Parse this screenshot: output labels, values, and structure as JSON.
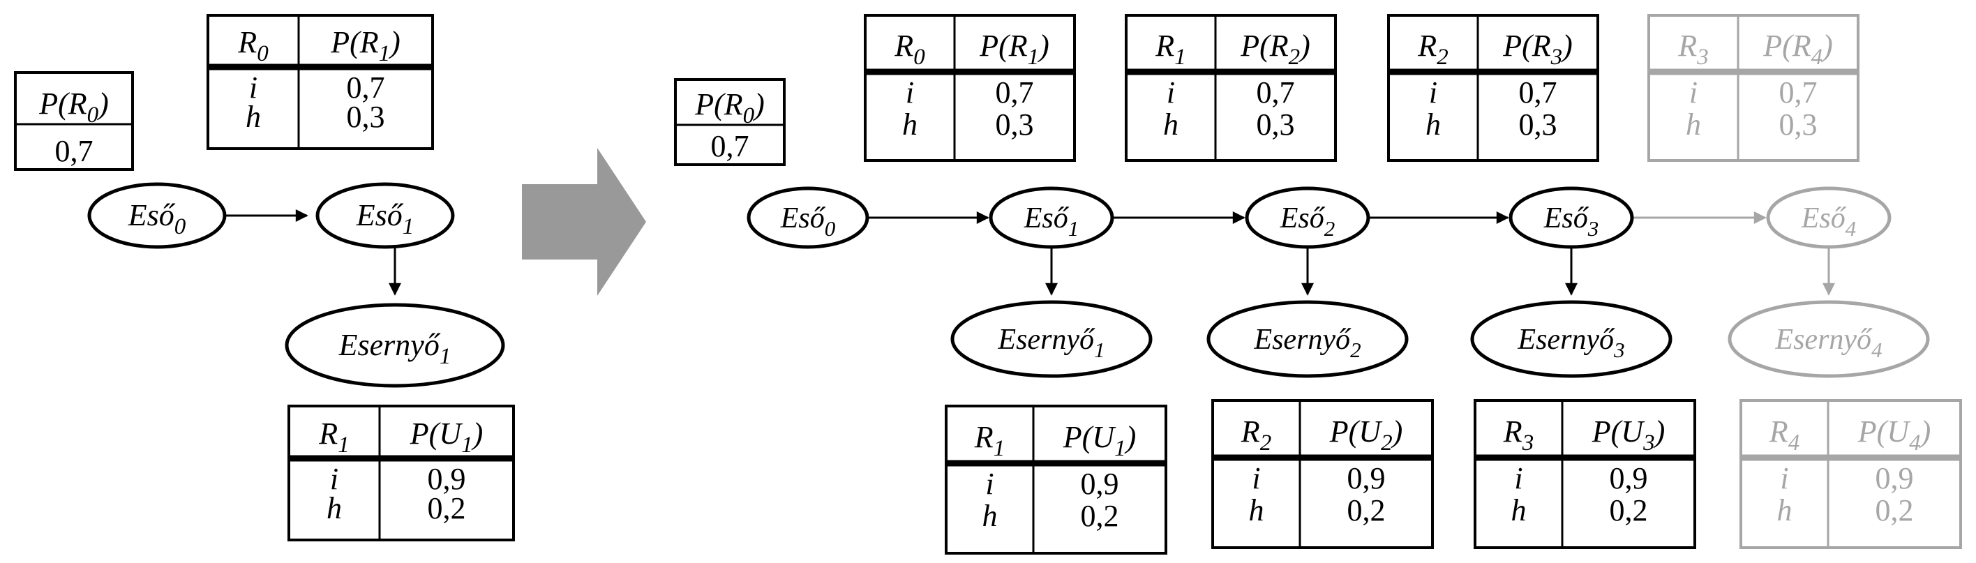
{
  "colors": {
    "ink": "#000000",
    "faded": "#a6a6a6",
    "arrow_fill": "#999999"
  },
  "left": {
    "prior": {
      "header": {
        "base": "P(R",
        "sub": "0",
        "close": ")"
      },
      "value": "0,7"
    },
    "cpt_r1": {
      "headers": [
        {
          "base": "R",
          "sub": "0",
          "close": ""
        },
        {
          "base": "P(R",
          "sub": "1",
          "close": ")"
        }
      ],
      "rows": [
        {
          "key": "i",
          "value": "0,7"
        },
        {
          "key": "h",
          "value": "0,3"
        }
      ]
    },
    "rain0": {
      "base": "Eső",
      "sub": "0"
    },
    "rain1": {
      "base": "Eső",
      "sub": "1"
    },
    "umbrella1": {
      "base": "Esernyő",
      "sub": "1"
    },
    "cpt_u1": {
      "headers": [
        {
          "base": "R",
          "sub": "1",
          "close": ""
        },
        {
          "base": "P(U",
          "sub": "1",
          "close": ")"
        }
      ],
      "rows": [
        {
          "key": "i",
          "value": "0,9"
        },
        {
          "key": "h",
          "value": "0,2"
        }
      ]
    }
  },
  "right": {
    "prior": {
      "header": {
        "base": "P(R",
        "sub": "0",
        "close": ")"
      },
      "value": "0,7"
    },
    "rain0": {
      "base": "Eső",
      "sub": "0"
    },
    "slices": [
      {
        "rain": {
          "base": "Eső",
          "sub": "1"
        },
        "umbrella": {
          "base": "Esernyő",
          "sub": "1"
        },
        "trans": {
          "headers": [
            {
              "base": "R",
              "sub": "0",
              "close": ""
            },
            {
              "base": "P(R",
              "sub": "1",
              "close": ")"
            }
          ],
          "rows": [
            {
              "key": "i",
              "value": "0,7"
            },
            {
              "key": "h",
              "value": "0,3"
            }
          ]
        },
        "sensor": {
          "headers": [
            {
              "base": "R",
              "sub": "1",
              "close": ""
            },
            {
              "base": "P(U",
              "sub": "1",
              "close": ")"
            }
          ],
          "rows": [
            {
              "key": "i",
              "value": "0,9"
            },
            {
              "key": "h",
              "value": "0,2"
            }
          ]
        }
      },
      {
        "rain": {
          "base": "Eső",
          "sub": "2"
        },
        "umbrella": {
          "base": "Esernyő",
          "sub": "2"
        },
        "trans": {
          "headers": [
            {
              "base": "R",
              "sub": "1",
              "close": ""
            },
            {
              "base": "P(R",
              "sub": "2",
              "close": ")"
            }
          ],
          "rows": [
            {
              "key": "i",
              "value": "0,7"
            },
            {
              "key": "h",
              "value": "0,3"
            }
          ]
        },
        "sensor": {
          "headers": [
            {
              "base": "R",
              "sub": "2",
              "close": ""
            },
            {
              "base": "P(U",
              "sub": "2",
              "close": ")"
            }
          ],
          "rows": [
            {
              "key": "i",
              "value": "0,9"
            },
            {
              "key": "h",
              "value": "0,2"
            }
          ]
        }
      },
      {
        "rain": {
          "base": "Eső",
          "sub": "3"
        },
        "umbrella": {
          "base": "Esernyő",
          "sub": "3"
        },
        "trans": {
          "headers": [
            {
              "base": "R",
              "sub": "2",
              "close": ""
            },
            {
              "base": "P(R",
              "sub": "3",
              "close": ")"
            }
          ],
          "rows": [
            {
              "key": "i",
              "value": "0,7"
            },
            {
              "key": "h",
              "value": "0,3"
            }
          ]
        },
        "sensor": {
          "headers": [
            {
              "base": "R",
              "sub": "3",
              "close": ""
            },
            {
              "base": "P(U",
              "sub": "3",
              "close": ")"
            }
          ],
          "rows": [
            {
              "key": "i",
              "value": "0,9"
            },
            {
              "key": "h",
              "value": "0,2"
            }
          ]
        }
      },
      {
        "faded": true,
        "rain": {
          "base": "Eső",
          "sub": "4"
        },
        "umbrella": {
          "base": "Esernyő",
          "sub": "4"
        },
        "trans": {
          "headers": [
            {
              "base": "R",
              "sub": "3",
              "close": ""
            },
            {
              "base": "P(R",
              "sub": "4",
              "close": ")"
            }
          ],
          "rows": [
            {
              "key": "i",
              "value": "0,7"
            },
            {
              "key": "h",
              "value": "0,3"
            }
          ]
        },
        "sensor": {
          "headers": [
            {
              "base": "R",
              "sub": "4",
              "close": ""
            },
            {
              "base": "P(U",
              "sub": "4",
              "close": ")"
            }
          ],
          "rows": [
            {
              "key": "i",
              "value": "0,9"
            },
            {
              "key": "h",
              "value": "0,2"
            }
          ]
        }
      }
    ]
  }
}
